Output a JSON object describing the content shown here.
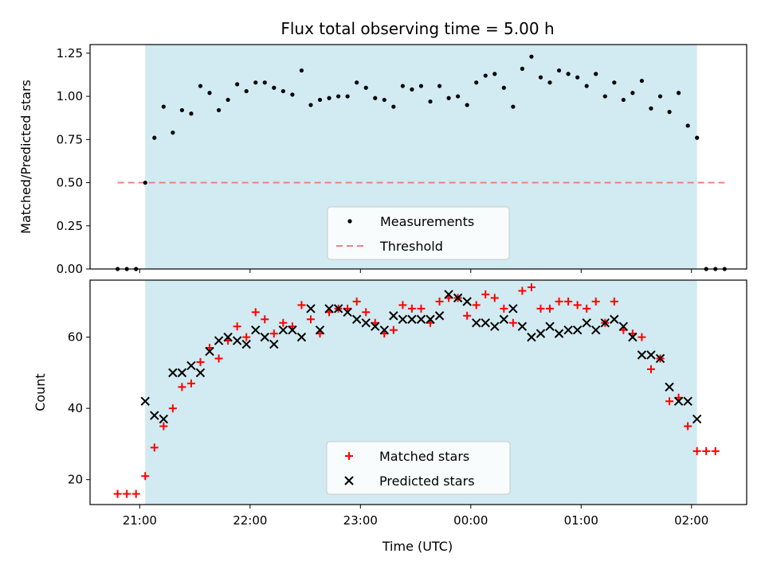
{
  "chart_data": [
    {
      "type": "scatter",
      "title": "Flux total observing time = 5.00 h",
      "xlabel": "",
      "ylabel": "Matched/Predicted stars",
      "xlim": [
        "20:33",
        "02:30"
      ],
      "ylim": [
        0,
        1.3
      ],
      "y_ticks": [
        "0.00",
        "0.25",
        "0.50",
        "0.75",
        "1.00",
        "1.25"
      ],
      "shaded_span": [
        "21:03",
        "02:03"
      ],
      "shade_color": "#add8e6",
      "legend": {
        "position": "bottom-center",
        "entries": [
          {
            "label": "Measurements",
            "marker": "dot",
            "color": "#000000"
          },
          {
            "label": "Threshold",
            "marker": "dashed-line",
            "color": "#f08080"
          }
        ]
      },
      "threshold": {
        "y": 0.5,
        "x_start": "20:48",
        "x_end": "02:18",
        "color": "#f08080"
      },
      "series": [
        {
          "name": "Measurements",
          "color": "#000000",
          "points": [
            [
              "20:48",
              0
            ],
            [
              "20:53",
              0
            ],
            [
              "20:58",
              0
            ],
            [
              "21:03",
              0.5
            ],
            [
              "21:08",
              0.76
            ],
            [
              "21:13",
              0.94
            ],
            [
              "21:18",
              0.79
            ],
            [
              "21:23",
              0.92
            ],
            [
              "21:28",
              0.9
            ],
            [
              "21:33",
              1.06
            ],
            [
              "21:38",
              1.02
            ],
            [
              "21:43",
              0.92
            ],
            [
              "21:48",
              0.98
            ],
            [
              "21:53",
              1.07
            ],
            [
              "21:58",
              1.03
            ],
            [
              "22:03",
              1.08
            ],
            [
              "22:08",
              1.08
            ],
            [
              "22:13",
              1.05
            ],
            [
              "22:18",
              1.03
            ],
            [
              "22:23",
              1.01
            ],
            [
              "22:28",
              1.15
            ],
            [
              "22:33",
              0.95
            ],
            [
              "22:38",
              0.98
            ],
            [
              "22:43",
              0.99
            ],
            [
              "22:48",
              1.0
            ],
            [
              "22:53",
              1.0
            ],
            [
              "22:58",
              1.08
            ],
            [
              "23:03",
              1.05
            ],
            [
              "23:08",
              0.99
            ],
            [
              "23:13",
              0.98
            ],
            [
              "23:18",
              0.94
            ],
            [
              "23:23",
              1.06
            ],
            [
              "23:28",
              1.04
            ],
            [
              "23:33",
              1.06
            ],
            [
              "23:38",
              0.97
            ],
            [
              "23:43",
              1.06
            ],
            [
              "23:48",
              0.99
            ],
            [
              "23:53",
              1.0
            ],
            [
              "23:58",
              0.95
            ],
            [
              "00:03",
              1.08
            ],
            [
              "00:08",
              1.12
            ],
            [
              "00:13",
              1.13
            ],
            [
              "00:18",
              1.05
            ],
            [
              "00:23",
              0.94
            ],
            [
              "00:28",
              1.16
            ],
            [
              "00:33",
              1.23
            ],
            [
              "00:38",
              1.11
            ],
            [
              "00:43",
              1.08
            ],
            [
              "00:48",
              1.15
            ],
            [
              "00:53",
              1.13
            ],
            [
              "00:58",
              1.11
            ],
            [
              "01:03",
              1.06
            ],
            [
              "01:08",
              1.13
            ],
            [
              "01:13",
              1.0
            ],
            [
              "01:18",
              1.08
            ],
            [
              "01:23",
              0.98
            ],
            [
              "01:28",
              1.02
            ],
            [
              "01:33",
              1.09
            ],
            [
              "01:38",
              0.93
            ],
            [
              "01:43",
              1.0
            ],
            [
              "01:48",
              0.91
            ],
            [
              "01:53",
              1.02
            ],
            [
              "01:58",
              0.83
            ],
            [
              "02:03",
              0.76
            ],
            [
              "02:08",
              0
            ],
            [
              "02:13",
              0
            ],
            [
              "02:18",
              0
            ]
          ]
        }
      ]
    },
    {
      "type": "scatter",
      "title": "",
      "xlabel": "Time (UTC)",
      "ylabel": "Count",
      "xlim": [
        "20:33",
        "02:30"
      ],
      "ylim": [
        13,
        76
      ],
      "y_ticks": [
        "20",
        "40",
        "60"
      ],
      "x_ticks": [
        "21:00",
        "22:00",
        "23:00",
        "00:00",
        "01:00",
        "02:00"
      ],
      "shaded_span": [
        "21:03",
        "02:03"
      ],
      "shade_color": "#add8e6",
      "legend": {
        "position": "bottom-center",
        "entries": [
          {
            "label": "Matched stars",
            "marker": "plus",
            "color": "#ff0000"
          },
          {
            "label": "Predicted stars",
            "marker": "x",
            "color": "#000000"
          }
        ]
      },
      "series": [
        {
          "name": "Matched stars",
          "marker": "plus",
          "color": "#ff0000",
          "points": [
            [
              "20:48",
              16
            ],
            [
              "20:53",
              16
            ],
            [
              "20:58",
              16
            ],
            [
              "21:03",
              21
            ],
            [
              "21:08",
              29
            ],
            [
              "21:13",
              35
            ],
            [
              "21:18",
              40
            ],
            [
              "21:23",
              46
            ],
            [
              "21:28",
              47
            ],
            [
              "21:33",
              53
            ],
            [
              "21:38",
              57
            ],
            [
              "21:43",
              54
            ],
            [
              "21:48",
              59
            ],
            [
              "21:53",
              63
            ],
            [
              "21:58",
              60
            ],
            [
              "22:03",
              67
            ],
            [
              "22:08",
              65
            ],
            [
              "22:13",
              61
            ],
            [
              "22:18",
              64
            ],
            [
              "22:23",
              63
            ],
            [
              "22:28",
              69
            ],
            [
              "22:33",
              65
            ],
            [
              "22:38",
              61
            ],
            [
              "22:43",
              67
            ],
            [
              "22:48",
              68
            ],
            [
              "22:53",
              68
            ],
            [
              "22:58",
              70
            ],
            [
              "23:03",
              67
            ],
            [
              "23:08",
              64
            ],
            [
              "23:13",
              61
            ],
            [
              "23:18",
              62
            ],
            [
              "23:23",
              69
            ],
            [
              "23:28",
              68
            ],
            [
              "23:33",
              68
            ],
            [
              "23:38",
              64
            ],
            [
              "23:43",
              70
            ],
            [
              "23:48",
              71
            ],
            [
              "23:53",
              71
            ],
            [
              "23:58",
              66
            ],
            [
              "00:03",
              69
            ],
            [
              "00:08",
              72
            ],
            [
              "00:13",
              71
            ],
            [
              "00:18",
              68
            ],
            [
              "00:23",
              64
            ],
            [
              "00:28",
              73
            ],
            [
              "00:33",
              74
            ],
            [
              "00:38",
              68
            ],
            [
              "00:43",
              68
            ],
            [
              "00:48",
              70
            ],
            [
              "00:53",
              70
            ],
            [
              "00:58",
              69
            ],
            [
              "01:03",
              68
            ],
            [
              "01:08",
              70
            ],
            [
              "01:13",
              64
            ],
            [
              "01:18",
              70
            ],
            [
              "01:23",
              62
            ],
            [
              "01:28",
              61
            ],
            [
              "01:33",
              60
            ],
            [
              "01:38",
              51
            ],
            [
              "01:43",
              54
            ],
            [
              "01:48",
              42
            ],
            [
              "01:53",
              43
            ],
            [
              "01:58",
              35
            ],
            [
              "02:03",
              28
            ],
            [
              "02:08",
              28
            ],
            [
              "02:13",
              28
            ]
          ]
        },
        {
          "name": "Predicted stars",
          "marker": "x",
          "color": "#000000",
          "points": [
            [
              "21:03",
              42
            ],
            [
              "21:08",
              38
            ],
            [
              "21:13",
              37
            ],
            [
              "21:18",
              50
            ],
            [
              "21:23",
              50
            ],
            [
              "21:28",
              52
            ],
            [
              "21:33",
              50
            ],
            [
              "21:38",
              56
            ],
            [
              "21:43",
              59
            ],
            [
              "21:48",
              60
            ],
            [
              "21:53",
              59
            ],
            [
              "21:58",
              58
            ],
            [
              "22:03",
              62
            ],
            [
              "22:08",
              60
            ],
            [
              "22:13",
              58
            ],
            [
              "22:18",
              62
            ],
            [
              "22:23",
              62
            ],
            [
              "22:28",
              60
            ],
            [
              "22:33",
              68
            ],
            [
              "22:38",
              62
            ],
            [
              "22:43",
              68
            ],
            [
              "22:48",
              68
            ],
            [
              "22:53",
              67
            ],
            [
              "22:58",
              65
            ],
            [
              "23:03",
              64
            ],
            [
              "23:08",
              63
            ],
            [
              "23:13",
              62
            ],
            [
              "23:18",
              66
            ],
            [
              "23:23",
              65
            ],
            [
              "23:28",
              65
            ],
            [
              "23:33",
              65
            ],
            [
              "23:38",
              65
            ],
            [
              "23:43",
              66
            ],
            [
              "23:48",
              72
            ],
            [
              "23:53",
              71
            ],
            [
              "23:58",
              70
            ],
            [
              "00:03",
              64
            ],
            [
              "00:08",
              64
            ],
            [
              "00:13",
              63
            ],
            [
              "00:18",
              65
            ],
            [
              "00:23",
              68
            ],
            [
              "00:28",
              63
            ],
            [
              "00:33",
              60
            ],
            [
              "00:38",
              61
            ],
            [
              "00:43",
              63
            ],
            [
              "00:48",
              61
            ],
            [
              "00:53",
              62
            ],
            [
              "00:58",
              62
            ],
            [
              "01:03",
              64
            ],
            [
              "01:08",
              62
            ],
            [
              "01:13",
              64
            ],
            [
              "01:18",
              65
            ],
            [
              "01:23",
              63
            ],
            [
              "01:28",
              60
            ],
            [
              "01:33",
              55
            ],
            [
              "01:38",
              55
            ],
            [
              "01:43",
              54
            ],
            [
              "01:48",
              46
            ],
            [
              "01:53",
              42
            ],
            [
              "01:58",
              42
            ],
            [
              "02:03",
              37
            ]
          ]
        }
      ]
    }
  ]
}
